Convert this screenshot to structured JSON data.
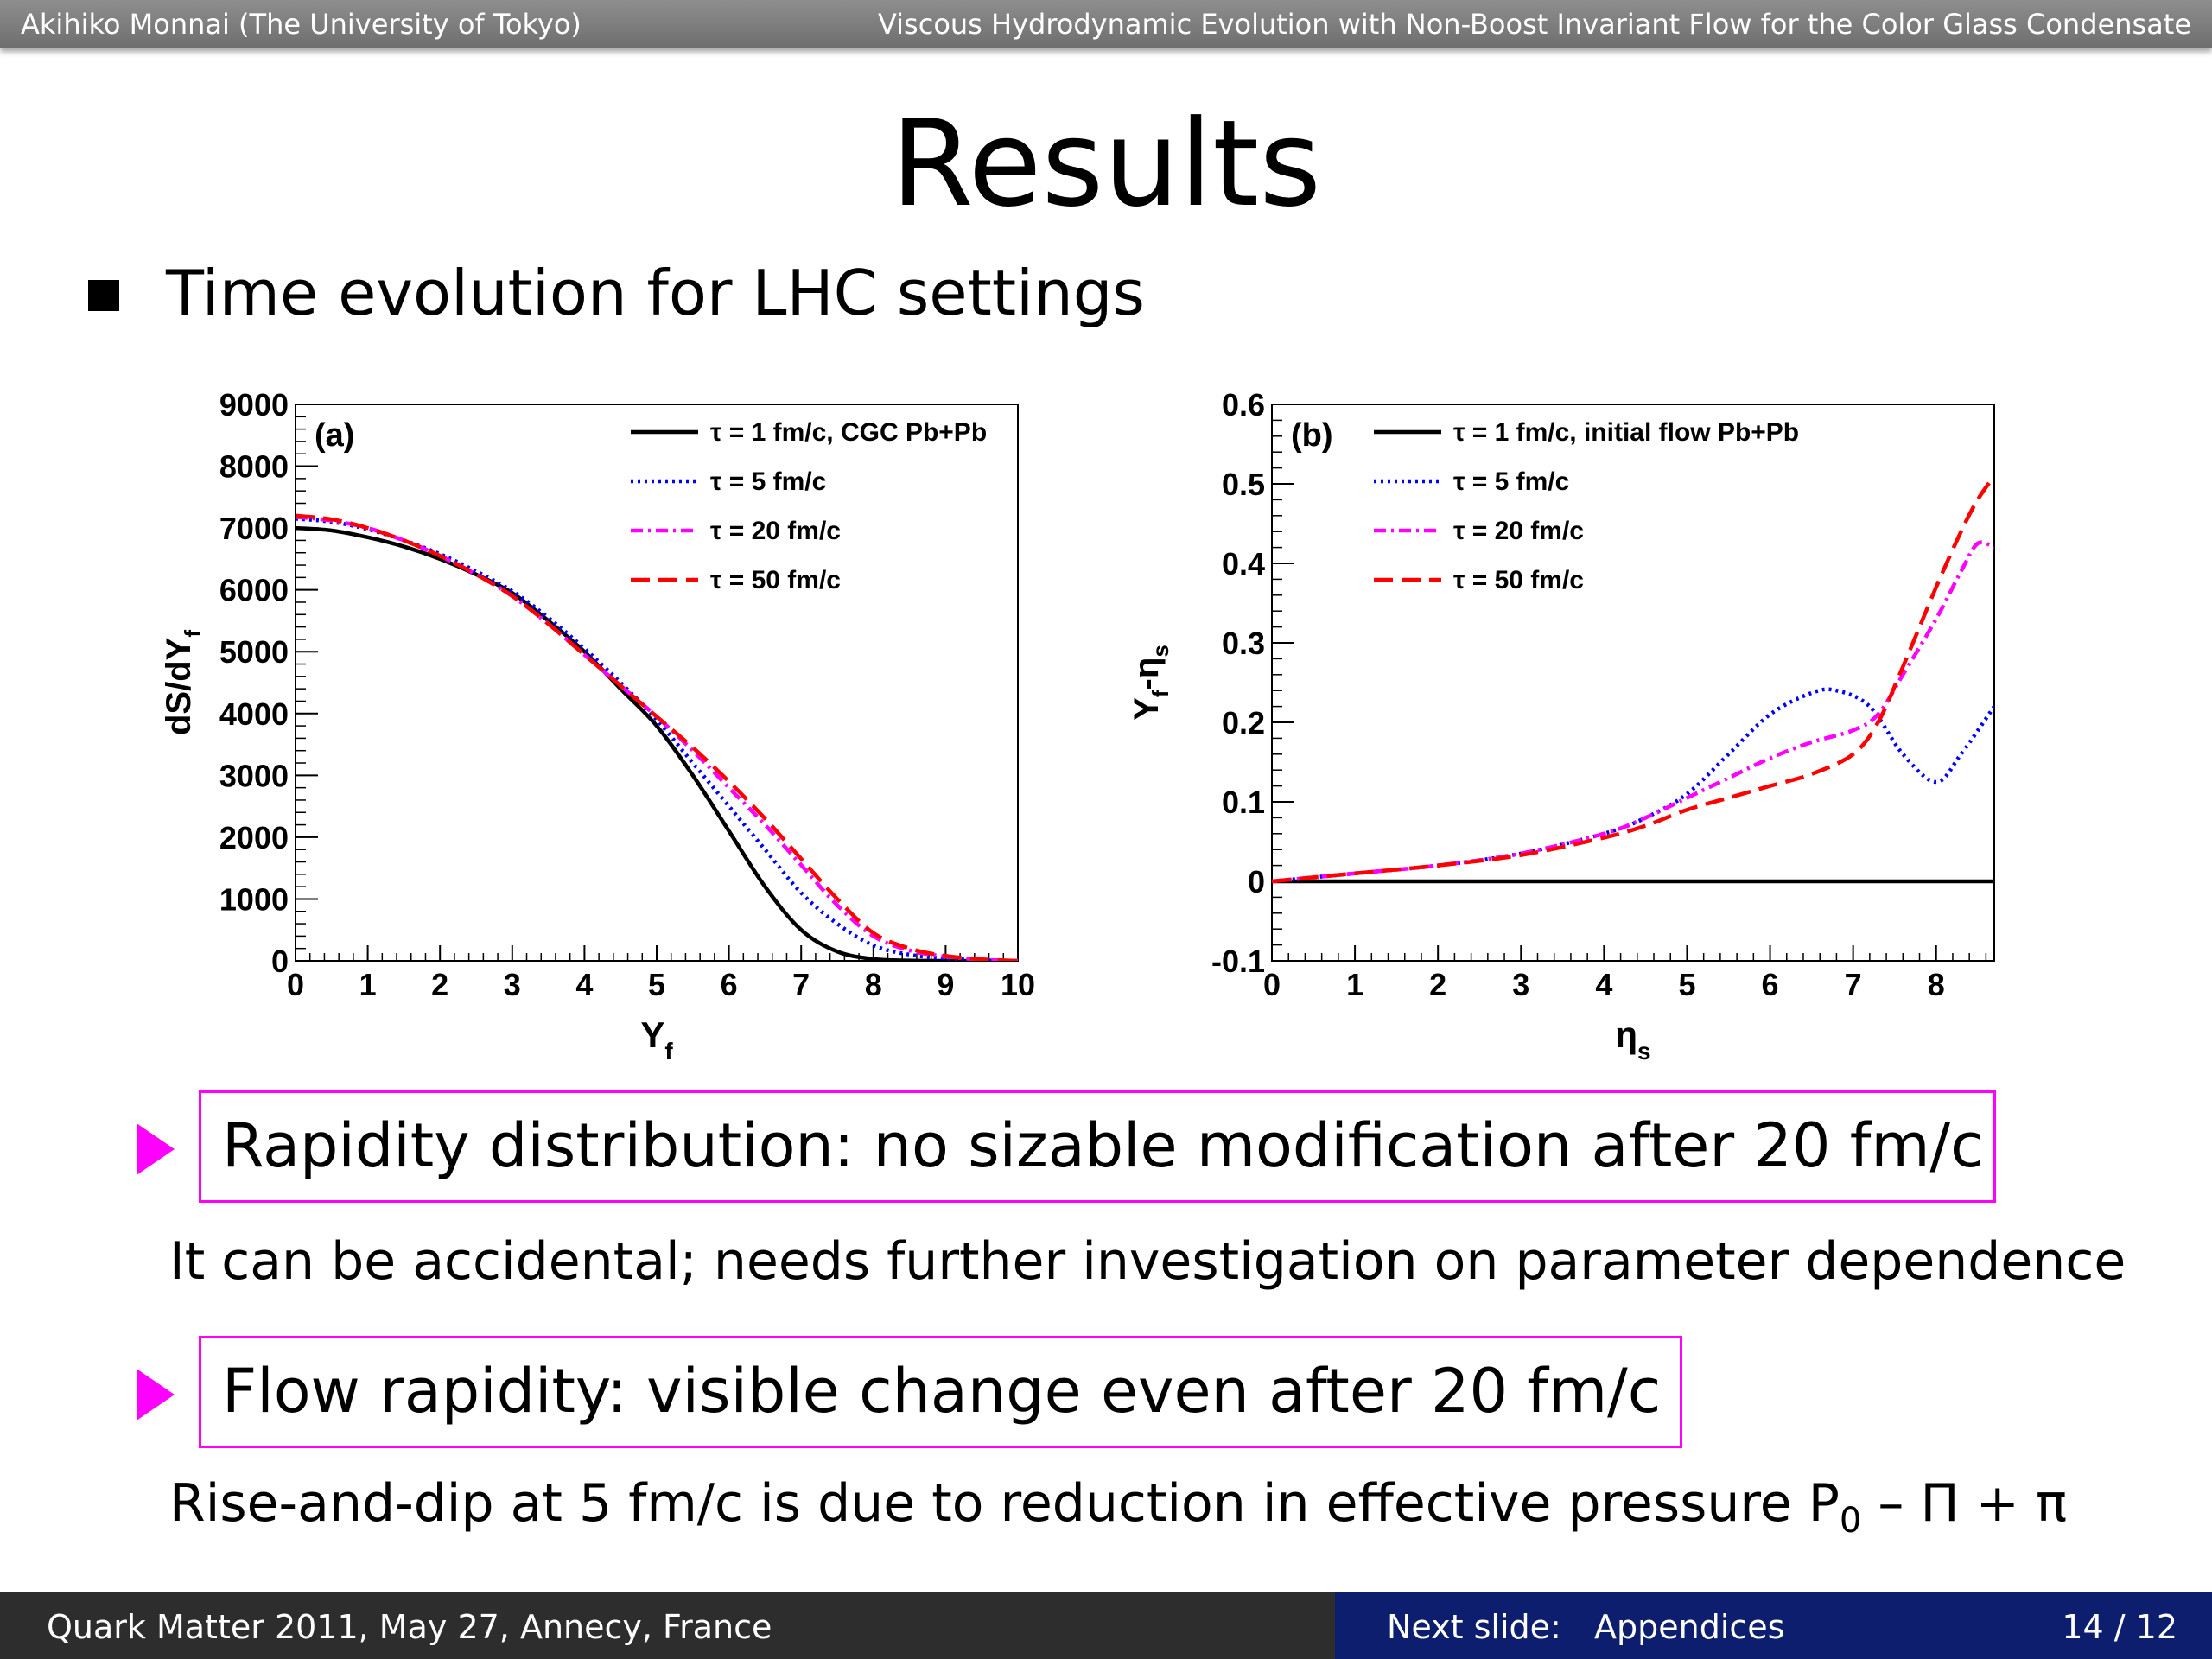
{
  "header": {
    "left": "Akihiko Monnai (The University of Tokyo)",
    "right": "Viscous Hydrodynamic Evolution with Non-Boost Invariant Flow for the Color Glass Condensate"
  },
  "title": "Results",
  "bullet": "Time evolution for LHC settings",
  "colors": {
    "black": "#000000",
    "blue": "#0000ff",
    "magenta": "#ff00ff",
    "red": "#ff0000",
    "accent": "#ff00ff"
  },
  "chart_data": [
    {
      "type": "line",
      "panel": "(a)",
      "xlabel_base": "Y",
      "xlabel_sub": "f",
      "ylabel": "dS/dY",
      "ylabel_sub": "f",
      "xlim": [
        0,
        10
      ],
      "ylim": [
        0,
        9000
      ],
      "xticks": [
        "0",
        "1",
        "2",
        "3",
        "4",
        "5",
        "6",
        "7",
        "8",
        "9",
        "10"
      ],
      "yticks": [
        "0",
        "1000",
        "2000",
        "3000",
        "4000",
        "5000",
        "6000",
        "7000",
        "8000",
        "9000"
      ],
      "series": [
        {
          "name": "τ = 1 fm/c, CGC Pb+Pb",
          "style": "solid",
          "color": "#000000",
          "x": [
            0,
            0.5,
            1,
            1.5,
            2,
            2.5,
            3,
            3.5,
            4,
            4.5,
            5,
            5.5,
            6,
            6.5,
            7,
            7.5,
            8,
            8.5,
            9,
            9.5,
            10
          ],
          "y": [
            7000,
            6960,
            6850,
            6700,
            6500,
            6250,
            5950,
            5500,
            5000,
            4400,
            3800,
            3000,
            2100,
            1200,
            500,
            150,
            30,
            5,
            0,
            0,
            0
          ]
        },
        {
          "name": "τ = 5 fm/c",
          "style": "dotted",
          "color": "#0000ff",
          "x": [
            0,
            0.5,
            1,
            1.5,
            2,
            2.5,
            3,
            3.5,
            4,
            4.5,
            5,
            5.5,
            6,
            6.5,
            7,
            7.5,
            8,
            8.5,
            9,
            9.5,
            10
          ],
          "y": [
            7150,
            7100,
            6980,
            6800,
            6580,
            6300,
            5980,
            5550,
            5050,
            4500,
            3900,
            3200,
            2500,
            1800,
            1100,
            600,
            250,
            100,
            40,
            10,
            0
          ]
        },
        {
          "name": "τ = 20 fm/c",
          "style": "dashdot",
          "color": "#ff00ff",
          "x": [
            0,
            0.5,
            1,
            1.5,
            2,
            2.5,
            3,
            3.5,
            4,
            4.5,
            5,
            5.5,
            6,
            6.5,
            7,
            7.5,
            8,
            8.5,
            9,
            9.5,
            10
          ],
          "y": [
            7180,
            7120,
            7000,
            6800,
            6550,
            6250,
            5900,
            5450,
            4950,
            4450,
            3950,
            3400,
            2800,
            2200,
            1550,
            900,
            400,
            170,
            70,
            20,
            0
          ]
        },
        {
          "name": "τ = 50 fm/c",
          "style": "dashed",
          "color": "#ff0000",
          "x": [
            0,
            0.5,
            1,
            1.5,
            2,
            2.5,
            3,
            3.5,
            4,
            4.5,
            5,
            5.5,
            6,
            6.5,
            7,
            7.5,
            8,
            8.5,
            9,
            9.5,
            10
          ],
          "y": [
            7200,
            7140,
            7000,
            6800,
            6550,
            6250,
            5900,
            5450,
            4950,
            4450,
            3950,
            3450,
            2900,
            2300,
            1650,
            1000,
            450,
            200,
            80,
            25,
            0
          ]
        }
      ]
    },
    {
      "type": "line",
      "panel": "(b)",
      "xlabel_base": "η",
      "xlabel_sub": "s",
      "ylabel": "Y",
      "ylabel_sub": "f",
      "ylabel_tail": "-η",
      "ylabel_tail_sub": "s",
      "xlim": [
        0,
        8.7
      ],
      "ylim": [
        -0.1,
        0.6
      ],
      "xticks": [
        "0",
        "1",
        "2",
        "3",
        "4",
        "5",
        "6",
        "7",
        "8"
      ],
      "yticks": [
        "-0.1",
        "0",
        "0.1",
        "0.2",
        "0.3",
        "0.4",
        "0.5",
        "0.6"
      ],
      "series": [
        {
          "name": "τ = 1 fm/c, initial flow Pb+Pb",
          "style": "solid",
          "color": "#000000",
          "x": [
            0,
            8.7
          ],
          "y": [
            0,
            0
          ]
        },
        {
          "name": "τ = 5 fm/c",
          "style": "dotted",
          "color": "#0000ff",
          "x": [
            0,
            1,
            2,
            3,
            4,
            4.5,
            5,
            5.5,
            6,
            6.5,
            6.8,
            7.2,
            7.6,
            8,
            8.3,
            8.7
          ],
          "y": [
            0,
            0.01,
            0.02,
            0.035,
            0.06,
            0.08,
            0.11,
            0.16,
            0.21,
            0.237,
            0.24,
            0.22,
            0.16,
            0.125,
            0.16,
            0.22
          ]
        },
        {
          "name": "τ = 20 fm/c",
          "style": "dashdot",
          "color": "#ff00ff",
          "x": [
            0,
            1,
            2,
            3,
            4,
            4.5,
            5,
            5.5,
            6,
            6.5,
            7,
            7.3,
            7.6,
            8,
            8.3,
            8.5,
            8.7
          ],
          "y": [
            0,
            0.01,
            0.02,
            0.035,
            0.06,
            0.08,
            0.105,
            0.13,
            0.155,
            0.175,
            0.19,
            0.21,
            0.26,
            0.33,
            0.39,
            0.425,
            0.42
          ]
        },
        {
          "name": "τ = 50 fm/c",
          "style": "dashed",
          "color": "#ff0000",
          "x": [
            0,
            1,
            2,
            3,
            4,
            4.5,
            5,
            5.5,
            6,
            6.5,
            7,
            7.3,
            7.6,
            8,
            8.3,
            8.5,
            8.7
          ],
          "y": [
            0,
            0.01,
            0.02,
            0.033,
            0.055,
            0.07,
            0.09,
            0.105,
            0.12,
            0.135,
            0.16,
            0.2,
            0.27,
            0.37,
            0.44,
            0.48,
            0.51
          ]
        }
      ]
    }
  ],
  "highlight1": "Rapidity distribution: no sizable modification after 20 fm/c",
  "sub1": "It can be accidental; needs further investigation on parameter dependence",
  "highlight2": "Flow rapidity: visible change even after 20 fm/c",
  "sub2_main": "Rise-and-dip at 5 fm/c is due to reduction in effective pressure P",
  "sub2_sub": "0",
  "sub2_tail": " – Π + π",
  "footer": {
    "left": "Quark Matter 2011, May 27, Annecy, France",
    "next_label": "Next slide:",
    "next_value": "Appendices",
    "page": "14 / 12"
  }
}
